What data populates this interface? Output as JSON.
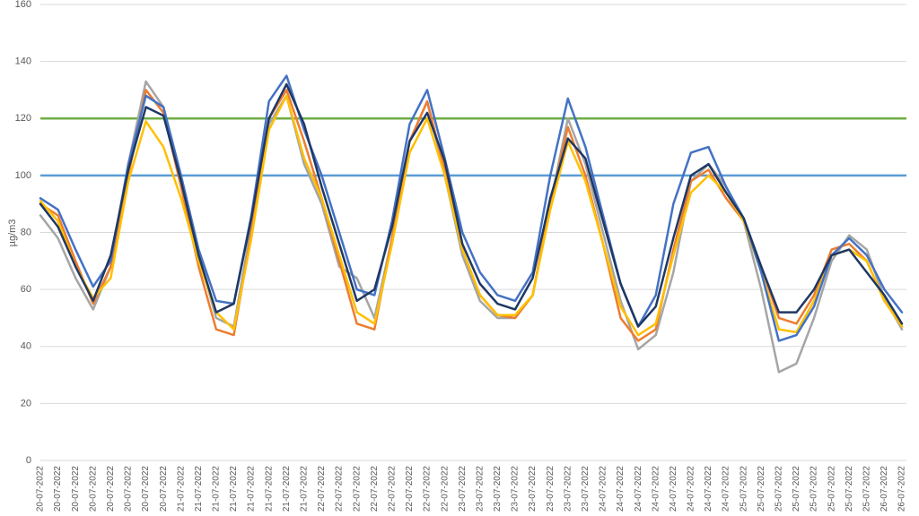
{
  "chart_data": {
    "type": "line",
    "y_label": "µg/m3",
    "ylim": [
      0,
      160
    ],
    "yticks": [
      0,
      20,
      40,
      60,
      80,
      100,
      120,
      140,
      160
    ],
    "grid": true,
    "categories": [
      "20-07-2022",
      "20-07-2022",
      "20-07-2022",
      "20-07-2022",
      "20-07-2022",
      "20-07-2022",
      "20-07-2022",
      "20-07-2022",
      "21-07-2022",
      "21-07-2022",
      "21-07-2022",
      "21-07-2022",
      "21-07-2022",
      "21-07-2022",
      "21-07-2022",
      "21-07-2022",
      "22-07-2022",
      "22-07-2022",
      "22-07-2022",
      "22-07-2022",
      "22-07-2022",
      "22-07-2022",
      "22-07-2022",
      "22-07-2022",
      "23-07-2022",
      "23-07-2022",
      "23-07-2022",
      "23-07-2022",
      "23-07-2022",
      "23-07-2022",
      "23-07-2022",
      "23-07-2022",
      "24-07-2022",
      "24-07-2022",
      "24-07-2022",
      "24-07-2022",
      "24-07-2022",
      "24-07-2022",
      "24-07-2022",
      "24-07-2022",
      "25-07-2022",
      "25-07-2022",
      "25-07-2022",
      "25-07-2022",
      "25-07-2022",
      "25-07-2022",
      "25-07-2022",
      "25-07-2022",
      "26-07-2022",
      "26-07-2022"
    ],
    "reference_lines": [
      {
        "value": 120,
        "color": "#70ad47"
      },
      {
        "value": 100,
        "color": "#5b9bd5"
      }
    ],
    "series": [
      {
        "color": "#a5a5a5",
        "values": [
          86,
          78,
          64,
          53,
          68,
          104,
          133,
          124,
          98,
          72,
          50,
          47,
          82,
          118,
          128,
          104,
          90,
          68,
          64,
          50,
          78,
          112,
          126,
          100,
          72,
          56,
          50,
          50,
          58,
          90,
          120,
          104,
          80,
          56,
          39,
          44,
          66,
          98,
          104,
          96,
          84,
          60,
          31,
          34,
          50,
          70,
          79,
          74,
          57,
          46
        ]
      },
      {
        "color": "#ed7d31",
        "values": [
          90,
          86,
          70,
          55,
          68,
          100,
          130,
          122,
          96,
          68,
          46,
          44,
          80,
          120,
          130,
          112,
          92,
          70,
          48,
          46,
          78,
          112,
          126,
          102,
          74,
          58,
          51,
          50,
          58,
          90,
          117,
          100,
          76,
          50,
          42,
          46,
          74,
          98,
          102,
          92,
          84,
          68,
          50,
          48,
          58,
          74,
          76,
          70,
          56,
          47
        ]
      },
      {
        "color": "#ffc000",
        "values": [
          91,
          84,
          68,
          57,
          64,
          98,
          119,
          110,
          92,
          70,
          52,
          46,
          78,
          116,
          128,
          106,
          92,
          72,
          52,
          48,
          76,
          108,
          120,
          100,
          74,
          58,
          51,
          51,
          58,
          88,
          112,
          98,
          76,
          54,
          44,
          48,
          72,
          94,
          100,
          94,
          84,
          66,
          46,
          45,
          56,
          72,
          74,
          70,
          56,
          47
        ]
      },
      {
        "color": "#4472c4",
        "values": [
          92,
          88,
          74,
          61,
          70,
          104,
          128,
          124,
          100,
          74,
          56,
          55,
          86,
          126,
          135,
          116,
          100,
          80,
          60,
          58,
          84,
          118,
          130,
          106,
          80,
          66,
          58,
          56,
          66,
          100,
          127,
          110,
          86,
          62,
          47,
          58,
          90,
          108,
          110,
          96,
          85,
          66,
          42,
          44,
          54,
          72,
          78,
          72,
          60,
          52
        ]
      },
      {
        "color": "#1f3864",
        "values": [
          90,
          82,
          68,
          56,
          72,
          102,
          124,
          121,
          98,
          72,
          52,
          55,
          85,
          120,
          132,
          118,
          96,
          76,
          56,
          60,
          82,
          112,
          122,
          105,
          76,
          62,
          55,
          53,
          64,
          92,
          113,
          106,
          84,
          62,
          47,
          54,
          78,
          100,
          104,
          94,
          85,
          68,
          52,
          52,
          60,
          72,
          74,
          66,
          58,
          48
        ]
      }
    ]
  }
}
